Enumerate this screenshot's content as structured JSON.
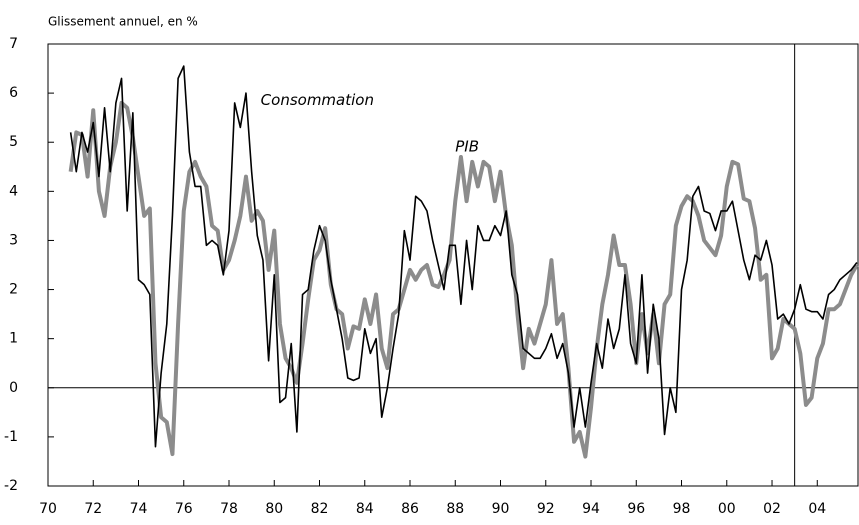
{
  "chart_data": {
    "type": "line",
    "y_label": "Glissement annuel, en %",
    "x": [
      1971,
      1971.25,
      1971.5,
      1971.75,
      1972,
      1972.25,
      1972.5,
      1972.75,
      1973,
      1973.25,
      1973.5,
      1973.75,
      1974,
      1974.25,
      1974.5,
      1974.75,
      1975,
      1975.25,
      1975.5,
      1975.75,
      1976,
      1976.25,
      1976.5,
      1976.75,
      1977,
      1977.25,
      1977.5,
      1977.75,
      1978,
      1978.25,
      1978.5,
      1978.75,
      1979,
      1979.25,
      1979.5,
      1979.75,
      1980,
      1980.25,
      1980.5,
      1980.75,
      1981,
      1981.25,
      1981.5,
      1981.75,
      1982,
      1982.25,
      1982.5,
      1982.75,
      1983,
      1983.25,
      1983.5,
      1983.75,
      1984,
      1984.25,
      1984.5,
      1984.75,
      1985,
      1985.25,
      1985.5,
      1985.75,
      1986,
      1986.25,
      1986.5,
      1986.75,
      1987,
      1987.25,
      1987.5,
      1987.75,
      1988,
      1988.25,
      1988.5,
      1988.75,
      1989,
      1989.25,
      1989.5,
      1989.75,
      1990,
      1990.25,
      1990.5,
      1990.75,
      1991,
      1991.25,
      1991.5,
      1991.75,
      1992,
      1992.25,
      1992.5,
      1992.75,
      1993,
      1993.25,
      1993.5,
      1993.75,
      1994,
      1994.25,
      1994.5,
      1994.75,
      1995,
      1995.25,
      1995.5,
      1995.75,
      1996,
      1996.25,
      1996.5,
      1996.75,
      1997,
      1997.25,
      1997.5,
      1997.75,
      1998,
      1998.25,
      1998.5,
      1998.75,
      1999,
      1999.25,
      1999.5,
      1999.75,
      2000,
      2000.25,
      2000.5,
      2000.75,
      2001,
      2001.25,
      2001.5,
      2001.75,
      2002,
      2002.25,
      2002.5,
      2002.75,
      2003,
      2003.25,
      2003.5,
      2003.75,
      2004,
      2004.25,
      2004.5,
      2004.75,
      2005,
      2005.25,
      2005.5,
      2005.75
    ],
    "series": [
      {
        "name": "PIB",
        "color": "#8c8c8c",
        "width": 4,
        "values": [
          4.4,
          5.2,
          5.15,
          4.3,
          5.65,
          4.0,
          3.5,
          4.5,
          5.0,
          5.8,
          5.7,
          5.1,
          4.3,
          3.5,
          3.65,
          0.5,
          -0.6,
          -0.7,
          -1.35,
          1.3,
          3.6,
          4.4,
          4.6,
          4.3,
          4.1,
          3.3,
          3.2,
          2.4,
          2.6,
          3.0,
          3.5,
          4.3,
          3.4,
          3.6,
          3.4,
          2.4,
          3.2,
          1.3,
          0.6,
          0.4,
          0.1,
          0.9,
          1.8,
          2.6,
          2.8,
          3.25,
          2.1,
          1.6,
          1.5,
          0.8,
          1.25,
          1.2,
          1.8,
          1.3,
          1.9,
          0.8,
          0.4,
          1.5,
          1.6,
          2.0,
          2.4,
          2.2,
          2.4,
          2.5,
          2.1,
          2.05,
          2.3,
          2.6,
          3.8,
          4.7,
          3.8,
          4.6,
          4.1,
          4.6,
          4.5,
          3.8,
          4.4,
          3.5,
          2.9,
          1.5,
          0.4,
          1.2,
          0.9,
          1.3,
          1.7,
          2.6,
          1.3,
          1.5,
          0.4,
          -1.1,
          -0.9,
          -1.4,
          -0.4,
          0.8,
          1.7,
          2.3,
          3.1,
          2.5,
          2.5,
          1.7,
          0.5,
          1.5,
          0.7,
          1.5,
          0.5,
          1.7,
          1.9,
          3.3,
          3.7,
          3.9,
          3.8,
          3.5,
          3.0,
          2.85,
          2.7,
          3.1,
          4.1,
          4.6,
          4.55,
          3.85,
          3.8,
          3.25,
          2.2,
          2.3,
          0.6,
          0.8,
          1.4,
          1.3,
          1.2,
          0.7,
          -0.35,
          -0.2,
          0.6,
          0.9,
          1.6,
          1.6,
          1.7,
          2.0,
          2.3,
          2.5
        ]
      },
      {
        "name": "Consommation",
        "color": "#000000",
        "width": 1.6,
        "values": [
          5.2,
          4.4,
          5.2,
          4.8,
          5.4,
          4.3,
          5.7,
          4.4,
          5.8,
          6.3,
          3.6,
          5.6,
          2.2,
          2.1,
          1.9,
          -1.2,
          0.3,
          1.3,
          3.5,
          6.3,
          6.55,
          4.8,
          4.1,
          4.1,
          2.9,
          3.0,
          2.9,
          2.3,
          3.2,
          5.8,
          5.3,
          6.0,
          4.4,
          3.1,
          2.6,
          0.55,
          2.3,
          -0.3,
          -0.2,
          0.9,
          -0.9,
          1.9,
          2.0,
          2.8,
          3.3,
          3.0,
          2.2,
          1.6,
          1.0,
          0.2,
          0.15,
          0.2,
          1.2,
          0.7,
          1.0,
          -0.6,
          0.0,
          0.8,
          1.5,
          3.2,
          2.6,
          3.9,
          3.8,
          3.6,
          3.0,
          2.5,
          2.0,
          2.9,
          2.9,
          1.7,
          3.0,
          2.0,
          3.3,
          3.0,
          3.0,
          3.3,
          3.1,
          3.6,
          2.3,
          1.9,
          0.8,
          0.7,
          0.6,
          0.6,
          0.8,
          1.1,
          0.6,
          0.9,
          0.3,
          -0.8,
          0.0,
          -0.8,
          0.1,
          0.9,
          0.4,
          1.4,
          0.8,
          1.2,
          2.3,
          0.9,
          0.5,
          2.3,
          0.3,
          1.7,
          1.0,
          -0.95,
          0.0,
          -0.5,
          2.0,
          2.6,
          3.9,
          4.1,
          3.6,
          3.55,
          3.2,
          3.6,
          3.6,
          3.8,
          3.2,
          2.6,
          2.2,
          2.7,
          2.6,
          3.0,
          2.5,
          1.4,
          1.5,
          1.3,
          1.6,
          2.1,
          1.6,
          1.55,
          1.55,
          1.4,
          1.9,
          2.0,
          2.2,
          2.3,
          2.4,
          2.55
        ]
      }
    ],
    "annotations": [
      {
        "text": "Consommation",
        "x": 1979.4,
        "y": 5.85
      },
      {
        "text": "PIB",
        "x": 1988.0,
        "y": 4.9
      }
    ],
    "vline": 2003,
    "xlim": [
      1970,
      2005.8
    ],
    "ylim": [
      -2,
      7
    ],
    "yticks": [
      -2,
      -1,
      0,
      1,
      2,
      3,
      4,
      5,
      6,
      7
    ],
    "xticks": [
      {
        "value": 1970,
        "label": "70"
      },
      {
        "value": 1972,
        "label": "72"
      },
      {
        "value": 1974,
        "label": "74"
      },
      {
        "value": 1976,
        "label": "76"
      },
      {
        "value": 1978,
        "label": "78"
      },
      {
        "value": 1980,
        "label": "80"
      },
      {
        "value": 1982,
        "label": "82"
      },
      {
        "value": 1984,
        "label": "84"
      },
      {
        "value": 1986,
        "label": "86"
      },
      {
        "value": 1988,
        "label": "88"
      },
      {
        "value": 1990,
        "label": "90"
      },
      {
        "value": 1992,
        "label": "92"
      },
      {
        "value": 1994,
        "label": "94"
      },
      {
        "value": 1996,
        "label": "96"
      },
      {
        "value": 1998,
        "label": "98"
      },
      {
        "value": 2000,
        "label": "00"
      },
      {
        "value": 2002,
        "label": "02"
      },
      {
        "value": 2004,
        "label": "04"
      }
    ]
  }
}
